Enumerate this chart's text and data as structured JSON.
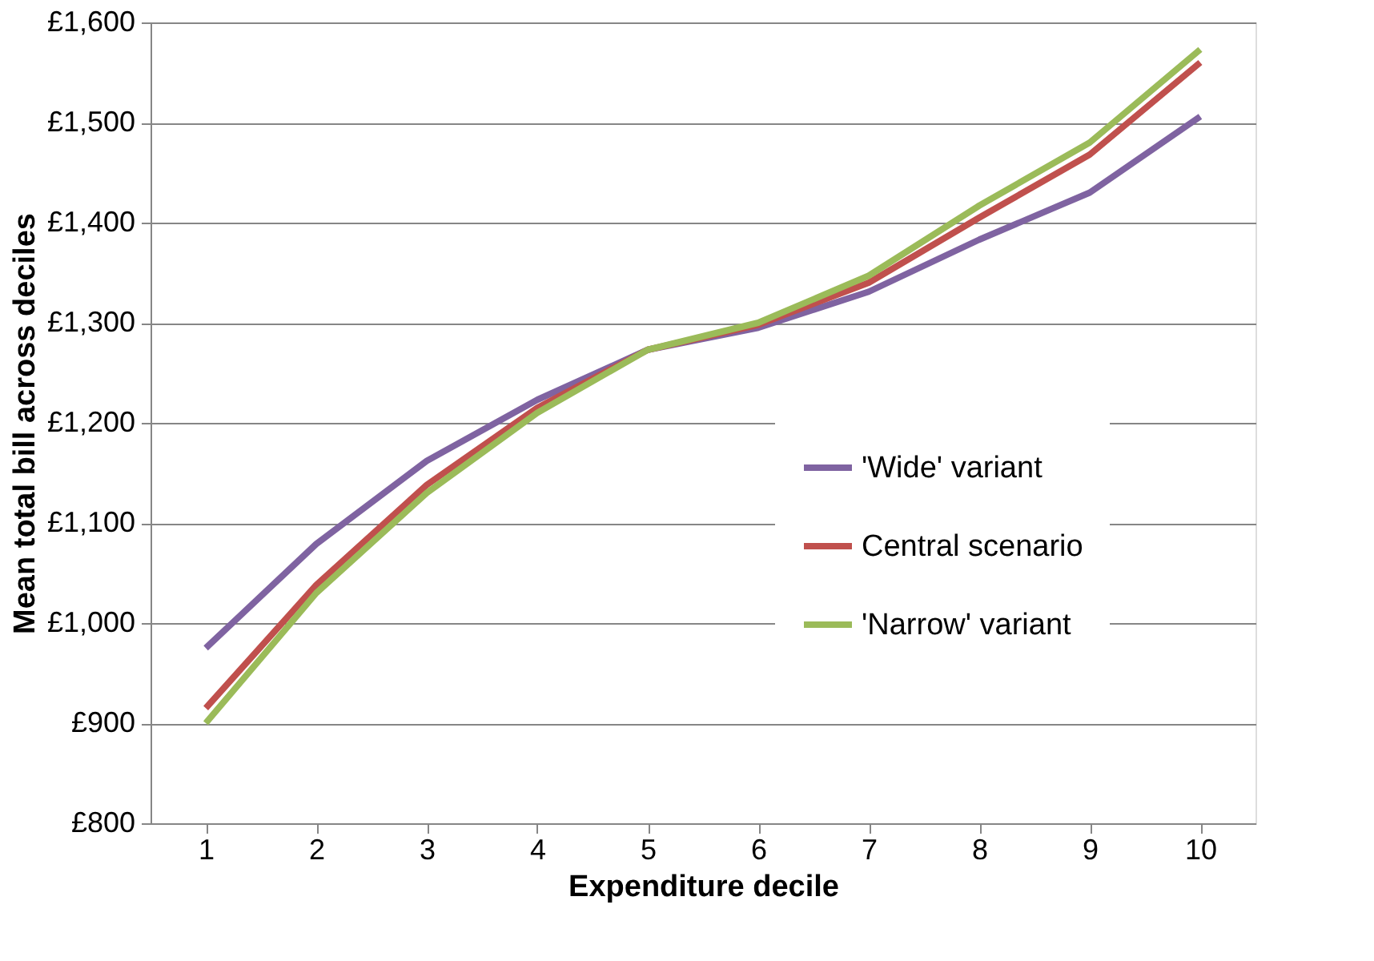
{
  "chart_data": {
    "type": "line",
    "xlabel": "Expenditure decile",
    "ylabel": "Mean total bill across deciles",
    "categories": [
      "1",
      "2",
      "3",
      "4",
      "5",
      "6",
      "7",
      "8",
      "9",
      "10"
    ],
    "series": [
      {
        "name": "'Wide' variant",
        "color": "#7f63a1",
        "values": [
          975,
          1079,
          1162,
          1223,
          1273,
          1295,
          1331,
          1383,
          1430,
          1506
        ]
      },
      {
        "name": "Central scenario",
        "color": "#c0504d",
        "values": [
          915,
          1038,
          1138,
          1215,
          1273,
          1298,
          1340,
          1405,
          1468,
          1560
        ]
      },
      {
        "name": "'Narrow' variant",
        "color": "#9bbb59",
        "values": [
          900,
          1030,
          1130,
          1210,
          1273,
          1300,
          1347,
          1417,
          1480,
          1573
        ]
      }
    ],
    "ylim": [
      800,
      1600
    ],
    "yticks": [
      {
        "value": 800,
        "label": "£800"
      },
      {
        "value": 900,
        "label": "£900"
      },
      {
        "value": 1000,
        "label": "£1,000"
      },
      {
        "value": 1100,
        "label": "£1,100"
      },
      {
        "value": 1200,
        "label": "£1,200"
      },
      {
        "value": 1300,
        "label": "£1,300"
      },
      {
        "value": 1400,
        "label": "£1,400"
      },
      {
        "value": 1500,
        "label": "£1,500"
      },
      {
        "value": 1600,
        "label": "£1,600"
      }
    ],
    "grid": "y",
    "legend": "right",
    "marker": "none",
    "line_style": "solid"
  }
}
